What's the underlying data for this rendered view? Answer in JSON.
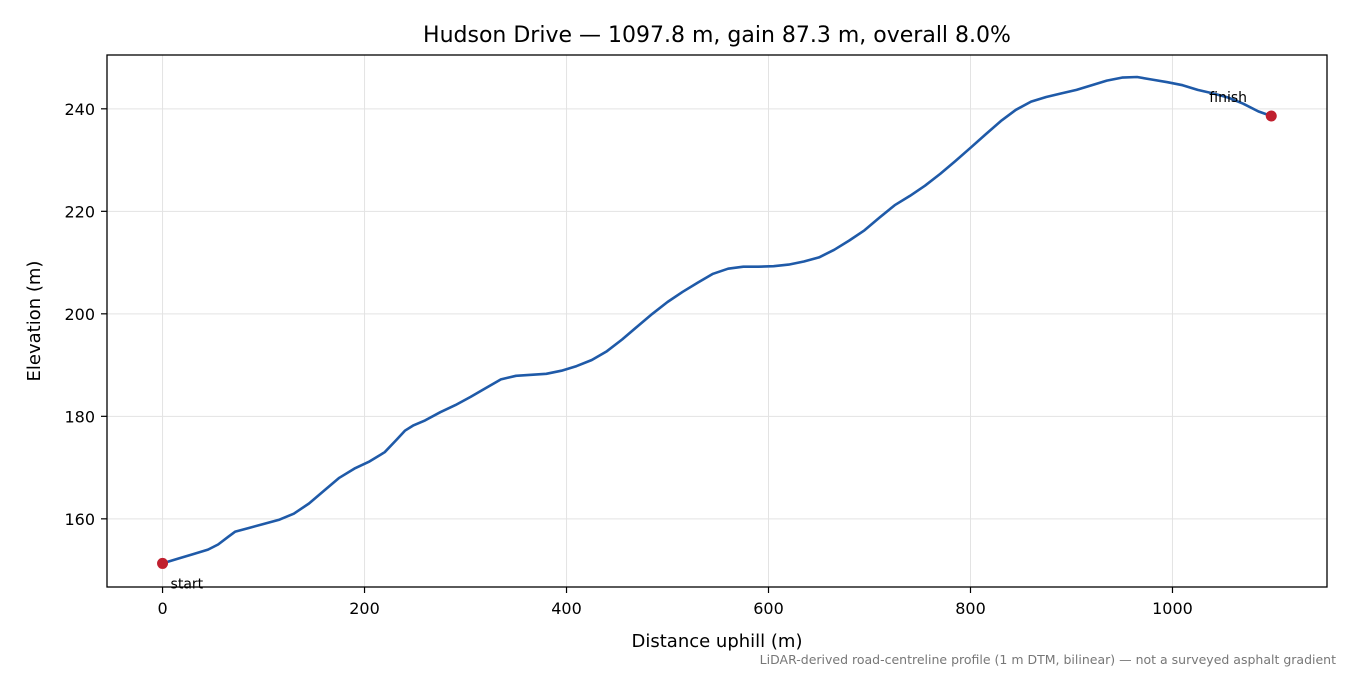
{
  "chart_data": {
    "type": "line",
    "title": "Hudson Drive — 1097.8 m, gain 87.3 m, overall 8.0%",
    "xlabel": "Distance uphill (m)",
    "ylabel": "Elevation (m)",
    "xlim": [
      -55,
      1153
    ],
    "ylim": [
      146.7,
      250.5
    ],
    "xticks": [
      0,
      200,
      400,
      600,
      800,
      1000
    ],
    "yticks": [
      160,
      180,
      200,
      220,
      240
    ],
    "grid": true,
    "line_color": "#1f5aa8",
    "marker_color": "#c0202f",
    "series": [
      {
        "x": [
          0,
          15,
          30,
          45,
          55,
          65,
          72,
          85,
          100,
          115,
          130,
          145,
          160,
          175,
          190,
          205,
          220,
          232,
          240,
          248,
          260,
          275,
          290,
          305,
          320,
          335,
          350,
          365,
          380,
          395,
          410,
          425,
          440,
          455,
          470,
          485,
          500,
          515,
          530,
          545,
          560,
          575,
          590,
          605,
          620,
          635,
          650,
          665,
          680,
          695,
          710,
          725,
          740,
          755,
          770,
          785,
          800,
          815,
          830,
          845,
          860,
          875,
          890,
          905,
          920,
          935,
          950,
          965,
          980,
          995,
          1010,
          1025,
          1040,
          1055,
          1070,
          1085,
          1097.8
        ],
        "y": [
          151.3,
          152.2,
          153.1,
          154.0,
          155.0,
          156.5,
          157.5,
          158.2,
          159.0,
          159.8,
          161.0,
          163.0,
          165.5,
          168.0,
          169.8,
          171.2,
          173.0,
          175.5,
          177.2,
          178.2,
          179.2,
          180.8,
          182.2,
          183.8,
          185.5,
          187.2,
          187.9,
          188.1,
          188.3,
          188.9,
          189.8,
          191.0,
          192.7,
          195.0,
          197.5,
          200.0,
          202.3,
          204.3,
          206.1,
          207.8,
          208.8,
          209.2,
          209.2,
          209.3,
          209.6,
          210.2,
          211.0,
          212.5,
          214.3,
          216.3,
          218.8,
          221.2,
          223.0,
          225.0,
          227.3,
          229.8,
          232.4,
          235.0,
          237.6,
          239.8,
          241.4,
          242.3,
          243.0,
          243.7,
          244.6,
          245.5,
          246.1,
          246.2,
          245.7,
          245.2,
          244.6,
          243.7,
          243.0,
          242.2,
          241.0,
          239.5,
          238.6
        ]
      }
    ],
    "annotations": [
      {
        "text": "start",
        "x": 0,
        "y": 151.3
      },
      {
        "text": "finish",
        "x": 1097.8,
        "y": 238.6
      }
    ],
    "footnote": "LiDAR-derived road-centreline profile (1 m DTM, bilinear) — not a surveyed asphalt gradient"
  }
}
